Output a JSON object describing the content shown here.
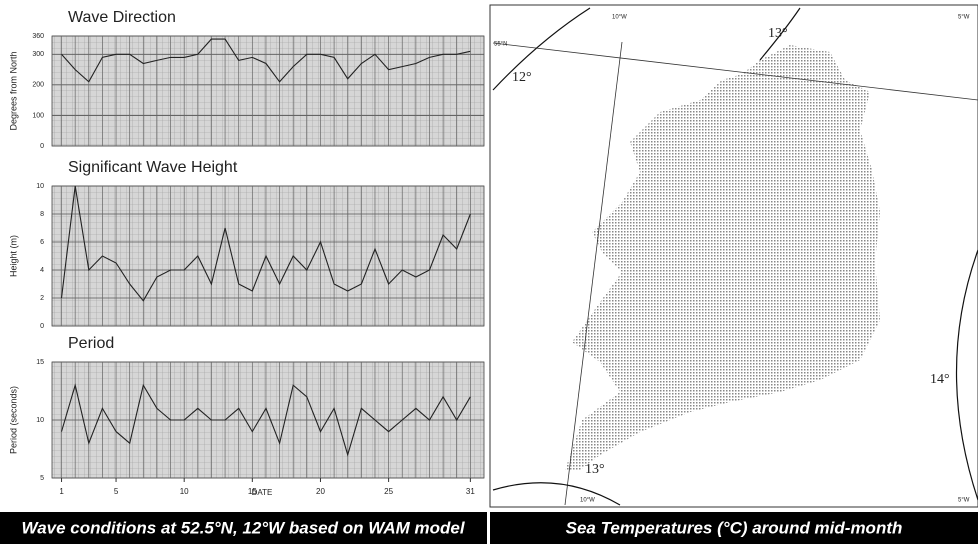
{
  "chart_data": [
    {
      "type": "line",
      "title": "Wave Direction",
      "ylabel": "Degrees from North",
      "x": [
        1,
        2,
        3,
        4,
        5,
        6,
        7,
        8,
        9,
        10,
        11,
        12,
        13,
        14,
        15,
        16,
        17,
        18,
        19,
        20,
        21,
        22,
        23,
        24,
        25,
        26,
        27,
        28,
        29,
        30,
        31
      ],
      "series": [
        {
          "color": "#222222",
          "values": [
            300,
            250,
            210,
            290,
            300,
            300,
            270,
            280,
            290,
            290,
            300,
            350,
            350,
            280,
            290,
            270,
            210,
            260,
            300,
            300,
            290,
            220,
            270,
            300,
            250,
            260,
            270,
            290,
            300,
            300,
            310
          ]
        }
      ],
      "xlim": [
        0.3,
        32
      ],
      "ylim": [
        0,
        360
      ],
      "yticks": [
        0,
        100,
        200,
        300,
        360
      ],
      "grid": true
    },
    {
      "type": "line",
      "title": "Significant Wave Height",
      "ylabel": "Height (m)",
      "x": [
        1,
        2,
        3,
        4,
        5,
        6,
        7,
        8,
        9,
        10,
        11,
        12,
        13,
        14,
        15,
        16,
        17,
        18,
        19,
        20,
        21,
        22,
        23,
        24,
        25,
        26,
        27,
        28,
        29,
        30,
        31
      ],
      "series": [
        {
          "color": "#222222",
          "values": [
            2,
            10,
            4,
            5,
            4.5,
            3,
            1.8,
            3.5,
            4,
            4,
            5,
            3,
            7,
            3,
            2.5,
            5,
            3,
            5,
            4,
            6,
            3,
            2.5,
            3,
            5.5,
            3,
            4,
            3.5,
            4,
            6.5,
            5.5,
            8
          ]
        }
      ],
      "xlim": [
        0.3,
        32
      ],
      "ylim": [
        0,
        10
      ],
      "yticks": [
        0,
        2,
        4,
        6,
        8,
        10
      ],
      "grid": true
    },
    {
      "type": "line",
      "title": "Period",
      "ylabel": "Period (seconds)",
      "xlabel": "DATE",
      "x": [
        1,
        2,
        3,
        4,
        5,
        6,
        7,
        8,
        9,
        10,
        11,
        12,
        13,
        14,
        15,
        16,
        17,
        18,
        19,
        20,
        21,
        22,
        23,
        24,
        25,
        26,
        27,
        28,
        29,
        30,
        31
      ],
      "series": [
        {
          "color": "#222222",
          "values": [
            9,
            13,
            8,
            11,
            9,
            8,
            13,
            11,
            10,
            10,
            11,
            10,
            10,
            11,
            9,
            11,
            8,
            13,
            12,
            9,
            11,
            7,
            11,
            10,
            9,
            10,
            11,
            10,
            12,
            10,
            12
          ]
        }
      ],
      "xlim": [
        0.3,
        32
      ],
      "ylim": [
        5,
        15
      ],
      "yticks": [
        5,
        10,
        15
      ],
      "xticks": [
        1,
        5,
        10,
        15,
        20,
        25,
        31
      ],
      "grid": true
    }
  ],
  "captions": {
    "left": "Wave conditions at 52.5°N, 12°W based on WAM model",
    "right": "Sea Temperatures (°C) around mid-month"
  },
  "map": {
    "isotherms": [
      "12°",
      "13°",
      "13°",
      "14°"
    ],
    "graticule": [
      "55°N",
      "10°W",
      "10°W",
      "5°W",
      "5°W"
    ]
  }
}
